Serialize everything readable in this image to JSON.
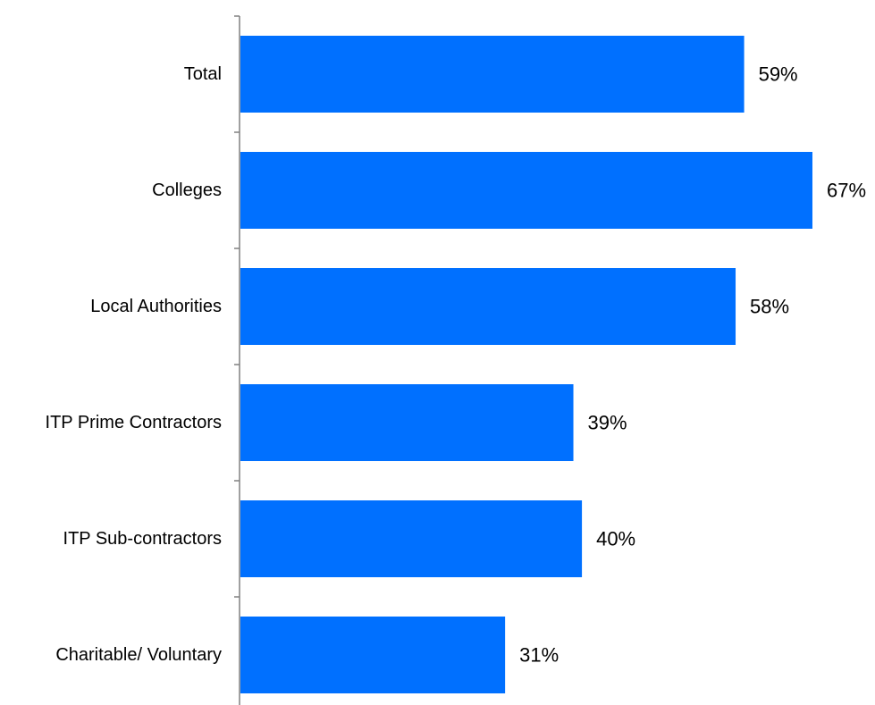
{
  "chart_data": {
    "type": "bar",
    "orientation": "horizontal",
    "title": "",
    "xlabel": "",
    "ylabel": "",
    "categories": [
      "Total",
      "Colleges",
      "Local Authorities",
      "ITP Prime Contractors",
      "ITP Sub-contractors",
      "Charitable/ Voluntary"
    ],
    "values": [
      59,
      67,
      58,
      39,
      40,
      31
    ],
    "value_labels": [
      "59%",
      "67%",
      "58%",
      "39%",
      "40%",
      "31%"
    ],
    "value_suffix": "%",
    "xlim": [
      0,
      67
    ],
    "grid": false,
    "legend": "none",
    "bar_color": "#0070FF",
    "axis_color": "#808080"
  }
}
